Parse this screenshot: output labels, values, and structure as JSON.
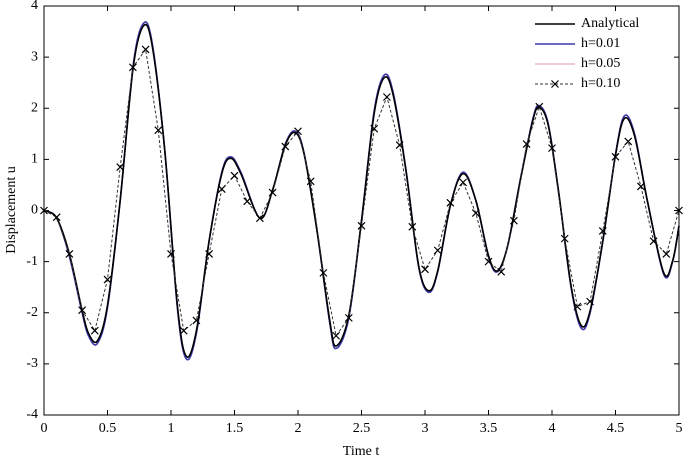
{
  "chart_data": {
    "type": "line",
    "xlabel": "Time t",
    "ylabel": "Displacement u",
    "xlim": [
      0,
      5
    ],
    "xticks": [
      0,
      0.5,
      1,
      1.5,
      2,
      2.5,
      3,
      3.5,
      4,
      4.5,
      5
    ],
    "ylim": [
      -4,
      4
    ],
    "yticks": [
      -4,
      -3,
      -2,
      -1,
      0,
      1,
      2,
      3,
      4
    ],
    "legend": "upper right",
    "series": [
      {
        "name": "h=0.05",
        "color": "#e8b8c8",
        "dash": "solid",
        "marker": "none",
        "x": [
          0,
          0.1,
          0.2,
          0.3,
          0.35,
          0.42,
          0.5,
          0.6,
          0.7,
          0.78,
          0.85,
          0.95,
          1.05,
          1.12,
          1.2,
          1.3,
          1.4,
          1.47,
          1.55,
          1.7,
          1.8,
          1.9,
          1.98,
          2.05,
          2.15,
          2.25,
          2.3,
          2.4,
          2.5,
          2.6,
          2.68,
          2.75,
          2.85,
          2.95,
          3.03,
          3.1,
          3.2,
          3.3,
          3.4,
          3.5,
          3.57,
          3.65,
          3.75,
          3.85,
          3.9,
          3.97,
          4.05,
          4.15,
          4.23,
          4.3,
          4.4,
          4.5,
          4.57,
          4.65,
          4.75,
          4.88,
          4.95,
          5.0
        ],
        "values": [
          0,
          -0.15,
          -0.9,
          -2.0,
          -2.45,
          -2.6,
          -1.9,
          0.2,
          2.8,
          3.65,
          3.3,
          1.2,
          -1.9,
          -2.9,
          -2.4,
          -0.6,
          0.75,
          1.05,
          0.75,
          -0.15,
          0.4,
          1.3,
          1.55,
          1.1,
          -0.4,
          -2.2,
          -2.7,
          -2.1,
          -0.2,
          1.95,
          2.65,
          2.3,
          0.8,
          -1.1,
          -1.6,
          -1.2,
          0.1,
          0.75,
          0.2,
          -0.9,
          -1.2,
          -0.7,
          0.6,
          1.8,
          2.05,
          1.7,
          0.4,
          -1.5,
          -2.3,
          -2.0,
          -0.6,
          1.1,
          1.85,
          1.5,
          0.2,
          -1.25,
          -1.0,
          -0.3
        ]
      },
      {
        "name": "h=0.01",
        "color": "#3a3aaa",
        "dash": "solid",
        "marker": "none",
        "x": [
          0,
          0.1,
          0.2,
          0.3,
          0.35,
          0.42,
          0.5,
          0.6,
          0.7,
          0.78,
          0.85,
          0.95,
          1.05,
          1.12,
          1.2,
          1.3,
          1.4,
          1.47,
          1.55,
          1.7,
          1.8,
          1.9,
          1.98,
          2.05,
          2.15,
          2.25,
          2.3,
          2.4,
          2.5,
          2.6,
          2.68,
          2.75,
          2.85,
          2.95,
          3.03,
          3.1,
          3.2,
          3.3,
          3.4,
          3.5,
          3.57,
          3.65,
          3.75,
          3.85,
          3.9,
          3.97,
          4.05,
          4.15,
          4.23,
          4.3,
          4.4,
          4.5,
          4.57,
          4.65,
          4.75,
          4.88,
          4.95,
          5.0
        ],
        "values": [
          0,
          -0.15,
          -0.9,
          -2.0,
          -2.45,
          -2.6,
          -1.9,
          0.2,
          2.8,
          3.65,
          3.3,
          1.2,
          -1.9,
          -2.9,
          -2.4,
          -0.6,
          0.75,
          1.05,
          0.75,
          -0.15,
          0.4,
          1.3,
          1.55,
          1.1,
          -0.4,
          -2.2,
          -2.7,
          -2.1,
          -0.2,
          1.95,
          2.65,
          2.3,
          0.8,
          -1.1,
          -1.6,
          -1.2,
          0.1,
          0.75,
          0.2,
          -0.9,
          -1.2,
          -0.7,
          0.6,
          1.8,
          2.05,
          1.7,
          0.4,
          -1.5,
          -2.3,
          -2.0,
          -0.6,
          1.1,
          1.85,
          1.5,
          0.2,
          -1.25,
          -1.0,
          -0.3
        ]
      },
      {
        "name": "Analytical",
        "color": "#000000",
        "dash": "solid",
        "marker": "none",
        "x": [
          0,
          0.1,
          0.2,
          0.3,
          0.35,
          0.42,
          0.5,
          0.6,
          0.7,
          0.78,
          0.85,
          0.95,
          1.05,
          1.12,
          1.2,
          1.3,
          1.4,
          1.47,
          1.55,
          1.7,
          1.8,
          1.9,
          1.98,
          2.05,
          2.15,
          2.25,
          2.3,
          2.4,
          2.5,
          2.6,
          2.68,
          2.75,
          2.85,
          2.95,
          3.03,
          3.1,
          3.2,
          3.3,
          3.4,
          3.5,
          3.57,
          3.65,
          3.75,
          3.85,
          3.9,
          3.97,
          4.05,
          4.15,
          4.23,
          4.3,
          4.4,
          4.5,
          4.57,
          4.65,
          4.75,
          4.88,
          4.95,
          5.0
        ],
        "values": [
          0,
          -0.15,
          -0.85,
          -1.95,
          -2.4,
          -2.55,
          -1.85,
          0.2,
          2.75,
          3.6,
          3.25,
          1.2,
          -1.85,
          -2.85,
          -2.35,
          -0.6,
          0.72,
          1.02,
          0.72,
          -0.15,
          0.4,
          1.28,
          1.52,
          1.08,
          -0.4,
          -2.15,
          -2.65,
          -2.05,
          -0.2,
          1.9,
          2.6,
          2.25,
          0.78,
          -1.08,
          -1.57,
          -1.18,
          0.1,
          0.72,
          0.2,
          -0.88,
          -1.18,
          -0.7,
          0.58,
          1.77,
          2.02,
          1.67,
          0.4,
          -1.47,
          -2.25,
          -1.96,
          -0.6,
          1.08,
          1.8,
          1.46,
          0.2,
          -1.22,
          -0.98,
          -0.3
        ]
      },
      {
        "name": "h=0.10",
        "color": "#333333",
        "dash": "dashed",
        "marker": "x",
        "x": [
          0,
          0.1,
          0.2,
          0.3,
          0.4,
          0.5,
          0.6,
          0.7,
          0.8,
          0.9,
          1.0,
          1.1,
          1.2,
          1.3,
          1.4,
          1.5,
          1.6,
          1.7,
          1.8,
          1.9,
          2.0,
          2.1,
          2.2,
          2.3,
          2.4,
          2.5,
          2.6,
          2.7,
          2.8,
          2.9,
          3.0,
          3.1,
          3.2,
          3.3,
          3.4,
          3.5,
          3.6,
          3.7,
          3.8,
          3.9,
          4.0,
          4.1,
          4.2,
          4.3,
          4.4,
          4.5,
          4.6,
          4.7,
          4.8,
          4.9,
          5.0
        ],
        "values": [
          0,
          -0.13,
          -0.85,
          -1.95,
          -2.35,
          -1.35,
          0.85,
          2.8,
          3.15,
          1.57,
          -0.85,
          -2.35,
          -2.15,
          -0.85,
          0.42,
          0.68,
          0.18,
          -0.15,
          0.35,
          1.25,
          1.55,
          0.57,
          -1.22,
          -2.45,
          -2.1,
          -0.3,
          1.6,
          2.22,
          1.28,
          -0.32,
          -1.15,
          -0.78,
          0.15,
          0.55,
          -0.05,
          -1.0,
          -1.2,
          -0.2,
          1.3,
          2.03,
          1.22,
          -0.55,
          -1.88,
          -1.78,
          -0.4,
          1.05,
          1.35,
          0.47,
          -0.6,
          -0.85,
          0.0
        ]
      }
    ]
  }
}
